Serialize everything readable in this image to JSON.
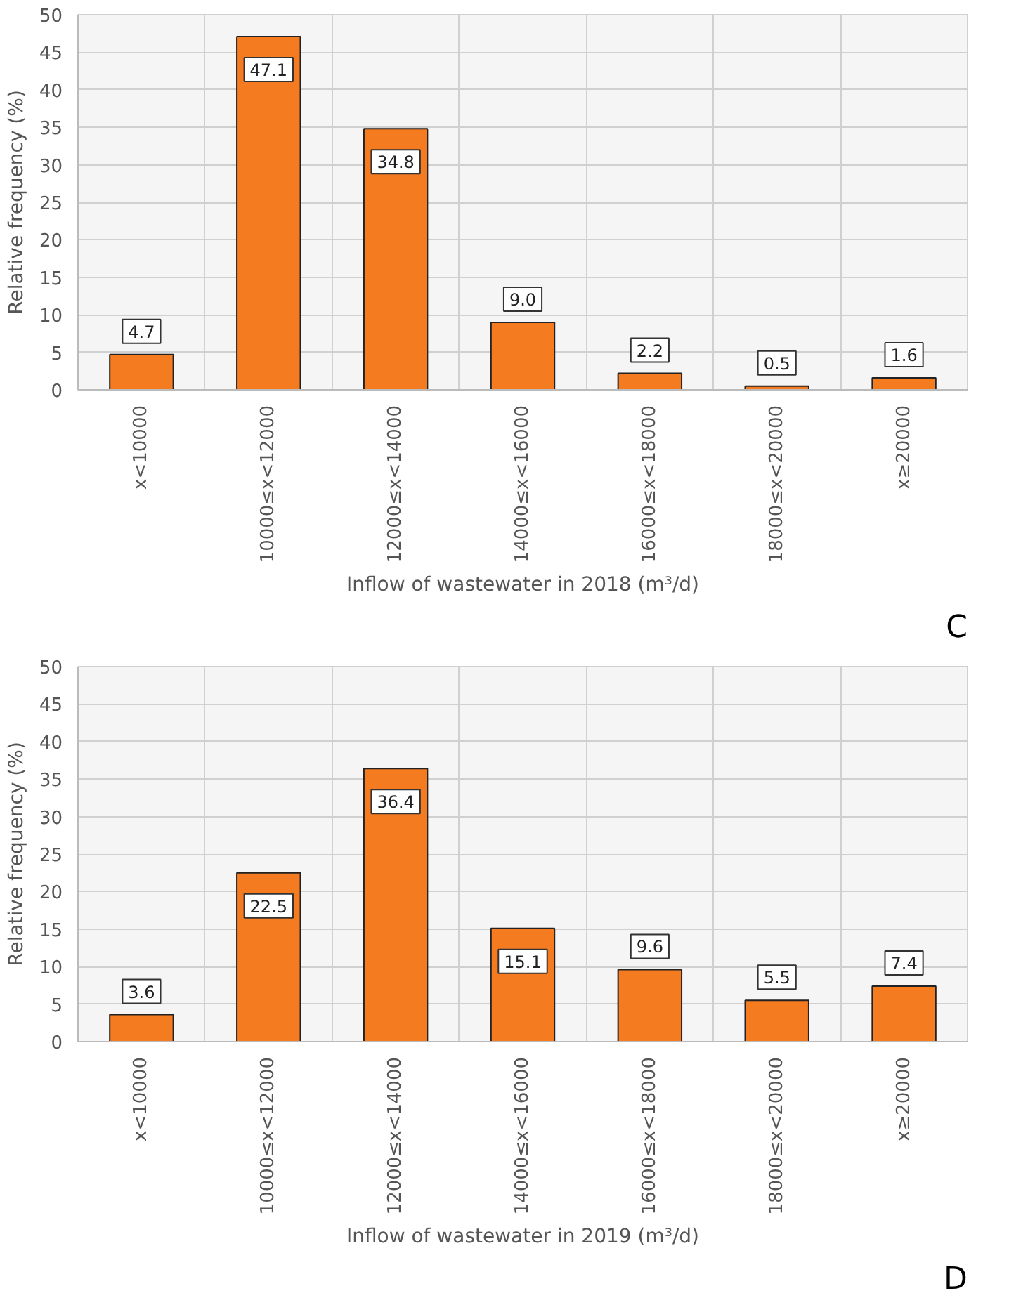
{
  "chart_data": [
    {
      "type": "bar",
      "xlabel": "Inflow of wastewater in 2018 (m³/d)",
      "ylabel": "Relative frequency (%)",
      "categories": [
        "x<10000",
        "10000≤x<12000",
        "12000≤x<14000",
        "14000≤x<16000",
        "16000≤x<18000",
        "18000≤x<20000",
        "x≥20000"
      ],
      "values": [
        4.7,
        47.1,
        34.8,
        9.0,
        2.2,
        0.5,
        1.6
      ],
      "color": "#f47b20",
      "value_labels": [
        "4.7",
        "47.1",
        "34.8",
        "9.0",
        "2.2",
        "0.5",
        "1.6"
      ],
      "ylim": [
        0,
        50
      ],
      "yticks": [
        0,
        5,
        10,
        15,
        20,
        25,
        30,
        35,
        40,
        45,
        50
      ],
      "grid": true,
      "annotations": [
        "C"
      ]
    },
    {
      "type": "bar",
      "xlabel": "Inflow of wastewater in 2019 (m³/d)",
      "ylabel": "Relative frequency (%)",
      "categories": [
        "x<10000",
        "10000≤x<12000",
        "12000≤x<14000",
        "14000≤x<16000",
        "16000≤x<18000",
        "18000≤x<20000",
        "x≥20000"
      ],
      "values": [
        3.6,
        22.5,
        36.4,
        15.1,
        9.6,
        5.5,
        7.4
      ],
      "color": "#f47b20",
      "value_labels": [
        "3.6",
        "22.5",
        "36.4",
        "15.1",
        "9.6",
        "5.5",
        "7.4"
      ],
      "ylim": [
        0,
        50
      ],
      "yticks": [
        0,
        5,
        10,
        15,
        20,
        25,
        30,
        35,
        40,
        45,
        50
      ],
      "grid": true,
      "annotations": [
        "D"
      ]
    }
  ]
}
